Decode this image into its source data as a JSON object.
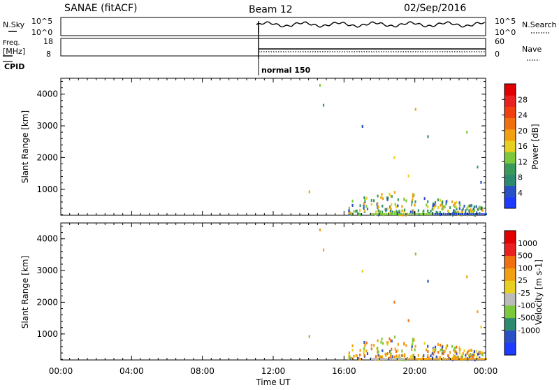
{
  "header": {
    "radar": "SANAE (fitACF)",
    "beam": "Beam 12",
    "date": "02/Sep/2016"
  },
  "nsky_panel": {
    "left_label": "N.Sky",
    "right_label": "N.Search",
    "left_ticks": [
      "10^5",
      "10^0"
    ],
    "right_ticks": [
      "10^5",
      "10^0"
    ]
  },
  "freq_panel": {
    "left_label_line1": "Freq.",
    "left_label_line2": "[MHz]",
    "right_label": "Nave",
    "left_ticks": [
      "18",
      "8"
    ],
    "right_ticks": [
      "60",
      "0"
    ]
  },
  "cpid": {
    "label": "CPID",
    "mode": "normal 150"
  },
  "x_axis": {
    "label": "Time UT",
    "ticks": [
      "00:00",
      "04:00",
      "08:00",
      "12:00",
      "16:00",
      "20:00",
      "00:00"
    ]
  },
  "chart_data": [
    {
      "type": "heatmap",
      "name": "power",
      "ylabel": "Slant Range [km]",
      "yticks": [
        1000,
        2000,
        3000,
        4000
      ],
      "ylim": [
        180,
        4500
      ],
      "xlim_hours": [
        0,
        24
      ],
      "colorbar": {
        "label": "Power [dB]",
        "ticks": [
          "4",
          "8",
          "12",
          "16",
          "20",
          "24",
          "28"
        ],
        "colors": [
          "#1e3cff",
          "#2a50c8",
          "#2e8a6e",
          "#3a9a5a",
          "#7cc83c",
          "#e8d020",
          "#f0a010",
          "#f07010",
          "#f04010",
          "#e82020",
          "#e00000"
        ]
      }
    },
    {
      "type": "heatmap",
      "name": "velocity",
      "ylabel": "Slant Range [km]",
      "yticks": [
        1000,
        2000,
        3000,
        4000
      ],
      "ylim": [
        180,
        4500
      ],
      "xlim_hours": [
        0,
        24
      ],
      "colorbar": {
        "label": "Velocity [m s-1]",
        "ticks": [
          "1000",
          "500",
          "100",
          "25",
          "-25",
          "-100",
          "-500",
          "-1000"
        ],
        "colors": [
          "#1e3cff",
          "#2a50c8",
          "#2e8a6e",
          "#7cc83c",
          "#bbbbbb",
          "#e8d020",
          "#f0a010",
          "#f07010",
          "#e82020",
          "#e00000"
        ]
      }
    }
  ]
}
